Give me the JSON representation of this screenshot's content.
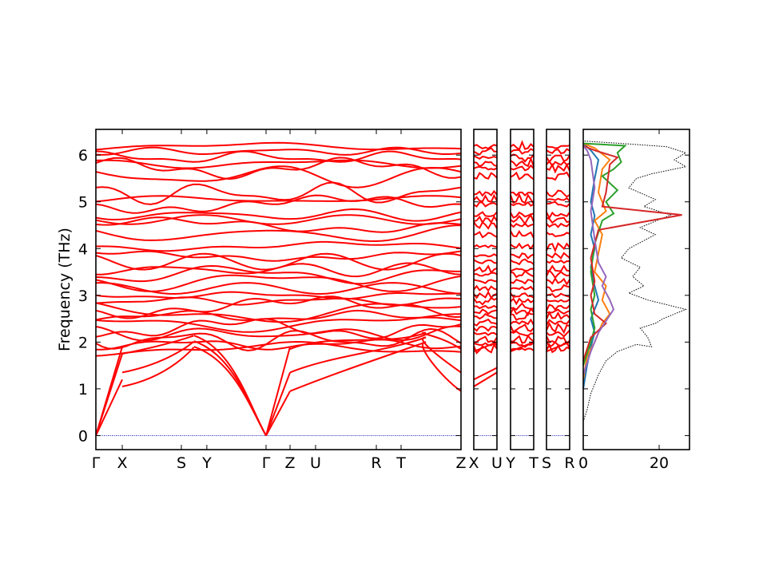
{
  "chart_data": {
    "type": "line",
    "ylabel": "Frequency (THz)",
    "ylim": [
      -0.3,
      6.55
    ],
    "yticks": [
      0,
      1,
      2,
      3,
      4,
      5,
      6
    ],
    "colors": {
      "bands": "#ff0000",
      "zero_line": "#0000aa",
      "total_dos": "#000000",
      "pdos": [
        "#1f77b4",
        "#ff7f0e",
        "#2ca02c",
        "#d62728",
        "#9467bd",
        "#8c564b"
      ]
    },
    "band_panels": [
      {
        "id": "main",
        "labels": [
          "Γ",
          "X",
          "S",
          "Y",
          "Γ",
          "Z",
          "U",
          "R",
          "T",
          "Z"
        ]
      },
      {
        "id": "p2",
        "labels": [
          "X",
          "U"
        ]
      },
      {
        "id": "p3",
        "labels": [
          "Y",
          "T"
        ]
      },
      {
        "id": "p4",
        "labels": [
          "S",
          "R"
        ]
      }
    ],
    "level_frequencies": [
      6.18,
      6.08,
      5.95,
      5.82,
      5.72,
      5.55,
      5.18,
      5.05,
      4.95,
      4.72,
      4.62,
      4.5,
      4.3,
      4.05,
      3.85,
      3.72,
      3.55,
      3.45,
      3.3,
      3.15,
      3.0,
      2.88,
      2.75,
      2.65,
      2.55,
      2.42,
      2.3,
      2.18,
      2.05,
      1.95,
      1.85
    ],
    "acoustic": {
      "gamma_to_x": [
        [
          0.0,
          0
        ],
        [
          0.07,
          1.2
        ]
      ],
      "x_onward": [
        1.05,
        1.35,
        1.75
      ],
      "gamma_to_z": [
        0.95,
        1.35,
        1.9
      ],
      "zone_end_z": [
        0.95,
        1.35,
        1.85
      ]
    },
    "dos": {
      "xlim": [
        0,
        28
      ],
      "xticks": [
        0,
        20
      ],
      "total": [
        [
          0,
          0.3
        ],
        [
          1,
          0.55
        ],
        [
          2,
          0.9
        ],
        [
          4,
          1.3
        ],
        [
          6,
          1.6
        ],
        [
          9,
          1.8
        ],
        [
          14,
          1.95
        ],
        [
          18,
          1.9
        ],
        [
          17,
          2.1
        ],
        [
          15,
          2.3
        ],
        [
          19,
          2.4
        ],
        [
          21,
          2.5
        ],
        [
          27,
          2.7
        ],
        [
          17,
          2.9
        ],
        [
          12,
          3.05
        ],
        [
          16,
          3.2
        ],
        [
          13,
          3.4
        ],
        [
          15,
          3.6
        ],
        [
          10,
          3.8
        ],
        [
          12,
          4.0
        ],
        [
          19,
          4.3
        ],
        [
          15,
          4.45
        ],
        [
          23,
          4.72
        ],
        [
          16,
          4.9
        ],
        [
          19,
          5.05
        ],
        [
          12,
          5.3
        ],
        [
          14,
          5.5
        ],
        [
          18,
          5.6
        ],
        [
          27,
          5.75
        ],
        [
          24,
          5.9
        ],
        [
          27,
          6.05
        ],
        [
          22,
          6.18
        ],
        [
          10,
          6.25
        ],
        [
          0,
          6.3
        ]
      ],
      "pdos": [
        {
          "points": [
            [
              0,
              1.0
            ],
            [
              1,
              1.5
            ],
            [
              2,
              1.9
            ],
            [
              3,
              2.2
            ],
            [
              2,
              2.5
            ],
            [
              4,
              2.9
            ],
            [
              3,
              3.2
            ],
            [
              2,
              3.6
            ],
            [
              3,
              4.0
            ],
            [
              2,
              4.3
            ],
            [
              3,
              4.7
            ],
            [
              2,
              5.0
            ],
            [
              3,
              5.5
            ],
            [
              4,
              5.9
            ],
            [
              2,
              6.1
            ],
            [
              0,
              6.25
            ]
          ]
        },
        {
          "points": [
            [
              0,
              1.2
            ],
            [
              1,
              1.7
            ],
            [
              3,
              2.0
            ],
            [
              5,
              2.4
            ],
            [
              7,
              2.6
            ],
            [
              5,
              2.9
            ],
            [
              6,
              3.2
            ],
            [
              3,
              3.5
            ],
            [
              4,
              3.9
            ],
            [
              5,
              4.3
            ],
            [
              3,
              4.6
            ],
            [
              6,
              4.8
            ],
            [
              4,
              5.2
            ],
            [
              5,
              5.7
            ],
            [
              7,
              5.9
            ],
            [
              3,
              6.15
            ],
            [
              0,
              6.25
            ]
          ]
        },
        {
          "points": [
            [
              0,
              1.5
            ],
            [
              2,
              2.0
            ],
            [
              3,
              2.3
            ],
            [
              2,
              2.7
            ],
            [
              3,
              3.0
            ],
            [
              2,
              3.5
            ],
            [
              3,
              4.1
            ],
            [
              5,
              4.6
            ],
            [
              8,
              4.75
            ],
            [
              6,
              5.0
            ],
            [
              9,
              5.25
            ],
            [
              5,
              5.55
            ],
            [
              8,
              5.7
            ],
            [
              10,
              5.85
            ],
            [
              9,
              6.05
            ],
            [
              11,
              6.2
            ],
            [
              0,
              6.25
            ]
          ]
        },
        {
          "points": [
            [
              0,
              1.6
            ],
            [
              2,
              2.1
            ],
            [
              6,
              2.4
            ],
            [
              3,
              2.6
            ],
            [
              2,
              3.0
            ],
            [
              3,
              3.3
            ],
            [
              2,
              3.8
            ],
            [
              4,
              4.4
            ],
            [
              26,
              4.72
            ],
            [
              5,
              4.9
            ],
            [
              6,
              5.2
            ],
            [
              7,
              5.8
            ],
            [
              9,
              5.95
            ],
            [
              3,
              6.1
            ],
            [
              0,
              6.2
            ]
          ]
        },
        {
          "points": [
            [
              0,
              1.3
            ],
            [
              2,
              1.8
            ],
            [
              4,
              2.2
            ],
            [
              8,
              2.7
            ],
            [
              7,
              2.9
            ],
            [
              5,
              3.2
            ],
            [
              6,
              3.4
            ],
            [
              4,
              3.7
            ],
            [
              3,
              4.2
            ],
            [
              2,
              4.8
            ],
            [
              3,
              5.3
            ],
            [
              2,
              5.9
            ],
            [
              1,
              6.1
            ],
            [
              0,
              6.2
            ]
          ]
        }
      ]
    }
  }
}
